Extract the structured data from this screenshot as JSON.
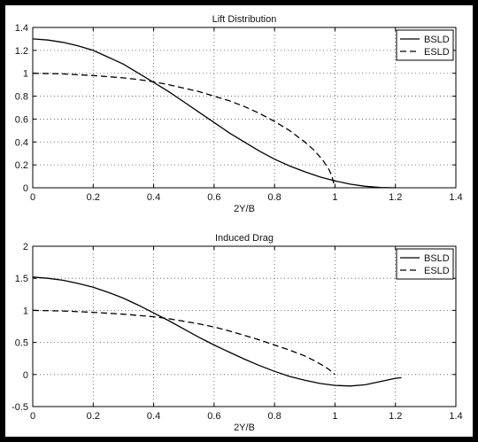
{
  "chart_data": [
    {
      "type": "line",
      "title": "Lift Distribution",
      "xlabel": "2Y/B",
      "ylabel": "",
      "xlim": [
        0,
        1.4
      ],
      "ylim": [
        0,
        1.4
      ],
      "xticks": [
        "0",
        "0.2",
        "0.4",
        "0.6",
        "0.8",
        "1",
        "1.2",
        "1.4"
      ],
      "yticks": [
        "0",
        "0.2",
        "0.4",
        "0.6",
        "0.8",
        "1",
        "1.2",
        "1.4"
      ],
      "grid": true,
      "legend_position": "top-right",
      "series": [
        {
          "name": "BSLD",
          "style": "solid",
          "x": [
            0,
            0.05,
            0.1,
            0.15,
            0.2,
            0.25,
            0.3,
            0.35,
            0.4,
            0.45,
            0.5,
            0.55,
            0.6,
            0.65,
            0.7,
            0.75,
            0.8,
            0.85,
            0.9,
            0.95,
            1.0,
            1.05,
            1.1,
            1.15,
            1.2
          ],
          "y": [
            1.3,
            1.29,
            1.27,
            1.24,
            1.2,
            1.14,
            1.08,
            1.0,
            0.92,
            0.84,
            0.75,
            0.66,
            0.57,
            0.48,
            0.4,
            0.32,
            0.25,
            0.19,
            0.14,
            0.095,
            0.06,
            0.032,
            0.013,
            0.003,
            0
          ]
        },
        {
          "name": "ESLD",
          "style": "dashed",
          "x": [
            0,
            0.1,
            0.2,
            0.3,
            0.35,
            0.4,
            0.45,
            0.5,
            0.55,
            0.6,
            0.65,
            0.7,
            0.75,
            0.8,
            0.85,
            0.9,
            0.93,
            0.96,
            0.98,
            0.99,
            1.0
          ],
          "y": [
            1.0,
            0.995,
            0.98,
            0.96,
            0.945,
            0.925,
            0.9,
            0.87,
            0.84,
            0.8,
            0.76,
            0.71,
            0.65,
            0.58,
            0.5,
            0.4,
            0.33,
            0.24,
            0.16,
            0.1,
            0
          ]
        }
      ]
    },
    {
      "type": "line",
      "title": "Induced Drag",
      "xlabel": "2Y/B",
      "ylabel": "",
      "xlim": [
        0,
        1.4
      ],
      "ylim": [
        -0.5,
        2
      ],
      "xticks": [
        "0",
        "0.2",
        "0.4",
        "0.6",
        "0.8",
        "1",
        "1.2",
        "1.4"
      ],
      "yticks": [
        "-0.5",
        "0",
        "0.5",
        "1",
        "1.5",
        "2"
      ],
      "grid": true,
      "legend_position": "top-right",
      "series": [
        {
          "name": "BSLD",
          "style": "solid",
          "x": [
            0,
            0.05,
            0.1,
            0.15,
            0.2,
            0.25,
            0.3,
            0.35,
            0.4,
            0.45,
            0.5,
            0.55,
            0.6,
            0.65,
            0.7,
            0.75,
            0.8,
            0.85,
            0.9,
            0.95,
            1.0,
            1.05,
            1.1,
            1.15,
            1.2,
            1.22
          ],
          "y": [
            1.52,
            1.5,
            1.47,
            1.42,
            1.36,
            1.28,
            1.19,
            1.08,
            0.96,
            0.84,
            0.71,
            0.58,
            0.46,
            0.35,
            0.24,
            0.14,
            0.05,
            -0.03,
            -0.09,
            -0.14,
            -0.17,
            -0.18,
            -0.16,
            -0.11,
            -0.06,
            -0.05
          ]
        },
        {
          "name": "ESLD",
          "style": "dashed",
          "x": [
            0,
            0.1,
            0.2,
            0.3,
            0.4,
            0.45,
            0.5,
            0.55,
            0.6,
            0.65,
            0.7,
            0.75,
            0.8,
            0.85,
            0.9,
            0.93,
            0.96,
            0.98,
            1.0
          ],
          "y": [
            1.0,
            0.99,
            0.97,
            0.94,
            0.9,
            0.87,
            0.83,
            0.79,
            0.74,
            0.68,
            0.61,
            0.54,
            0.46,
            0.38,
            0.29,
            0.22,
            0.14,
            0.08,
            0.0
          ]
        }
      ]
    }
  ]
}
